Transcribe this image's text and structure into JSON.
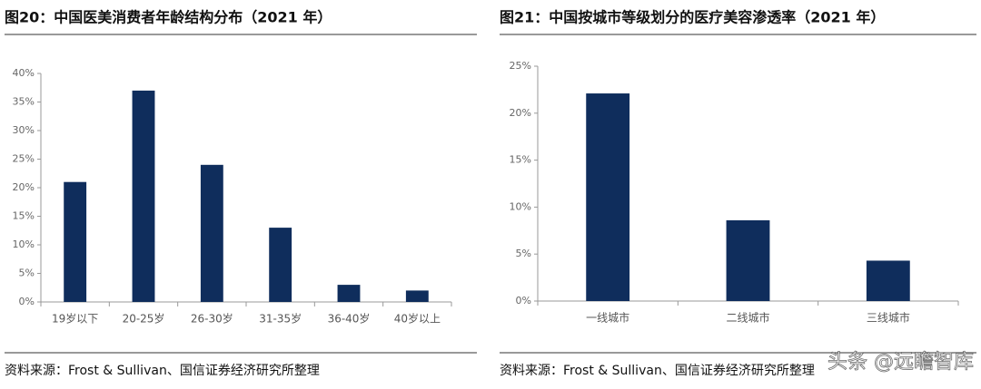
{
  "chart_data": [
    {
      "type": "bar",
      "title": "图20：中国医美消费者年龄结构分布（2021 年）",
      "categories": [
        "19岁以下",
        "20-25岁",
        "26-30岁",
        "31-35岁",
        "36-40岁",
        "40岁以上"
      ],
      "values": [
        21,
        37,
        24,
        13,
        3,
        2
      ],
      "color": "#0f2d5c",
      "ylim": [
        0,
        40
      ],
      "yticks": [
        {
          "value": 0,
          "label": "0%"
        },
        {
          "value": 5,
          "label": "5%"
        },
        {
          "value": 10,
          "label": "10%"
        },
        {
          "value": 15,
          "label": "15%"
        },
        {
          "value": 20,
          "label": "20%"
        },
        {
          "value": 25,
          "label": "25%"
        },
        {
          "value": 30,
          "label": "30%"
        },
        {
          "value": 35,
          "label": "35%"
        },
        {
          "value": 40,
          "label": "40%"
        }
      ],
      "grid": false,
      "source": "资料来源：Frost & Sullivan、国信证券经济研究所整理"
    },
    {
      "type": "bar",
      "title": "图21：中国按城市等级划分的医疗美容渗透率（2021 年）",
      "categories": [
        "一线城市",
        "二线城市",
        "三线城市"
      ],
      "values": [
        22.1,
        8.6,
        4.3
      ],
      "color": "#0f2d5c",
      "ylim": [
        0,
        25
      ],
      "yticks": [
        {
          "value": 0,
          "label": "0%"
        },
        {
          "value": 5,
          "label": "5%"
        },
        {
          "value": 10,
          "label": "10%"
        },
        {
          "value": 15,
          "label": "15%"
        },
        {
          "value": 20,
          "label": "20%"
        },
        {
          "value": 25,
          "label": "25%"
        }
      ],
      "grid": false,
      "source": "资料来源：Frost & Sullivan、国信证券经济研究所整理"
    }
  ],
  "watermark": "头条 @远瞻智库"
}
